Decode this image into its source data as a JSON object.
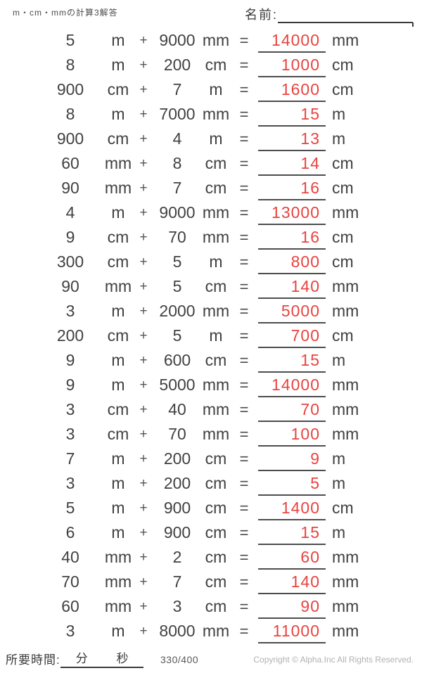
{
  "header": {
    "title": "m・cm・mmの計算3解答",
    "name_label": "名前:"
  },
  "colors": {
    "text": "#414141",
    "answer_red": "#e8433f",
    "rule_gray": "#4d4d4d",
    "muted_gray": "#b3b1b1"
  },
  "problems": [
    {
      "v1": "5",
      "u1": "m",
      "op": "+",
      "v2": "9000",
      "u2": "mm",
      "eq": "=",
      "ans": "14000",
      "u3": "mm"
    },
    {
      "v1": "8",
      "u1": "m",
      "op": "+",
      "v2": "200",
      "u2": "cm",
      "eq": "=",
      "ans": "1000",
      "u3": "cm"
    },
    {
      "v1": "900",
      "u1": "cm",
      "op": "+",
      "v2": "7",
      "u2": "m",
      "eq": "=",
      "ans": "1600",
      "u3": "cm"
    },
    {
      "v1": "8",
      "u1": "m",
      "op": "+",
      "v2": "7000",
      "u2": "mm",
      "eq": "=",
      "ans": "15",
      "u3": "m"
    },
    {
      "v1": "900",
      "u1": "cm",
      "op": "+",
      "v2": "4",
      "u2": "m",
      "eq": "=",
      "ans": "13",
      "u3": "m"
    },
    {
      "v1": "60",
      "u1": "mm",
      "op": "+",
      "v2": "8",
      "u2": "cm",
      "eq": "=",
      "ans": "14",
      "u3": "cm"
    },
    {
      "v1": "90",
      "u1": "mm",
      "op": "+",
      "v2": "7",
      "u2": "cm",
      "eq": "=",
      "ans": "16",
      "u3": "cm"
    },
    {
      "v1": "4",
      "u1": "m",
      "op": "+",
      "v2": "9000",
      "u2": "mm",
      "eq": "=",
      "ans": "13000",
      "u3": "mm"
    },
    {
      "v1": "9",
      "u1": "cm",
      "op": "+",
      "v2": "70",
      "u2": "mm",
      "eq": "=",
      "ans": "16",
      "u3": "cm"
    },
    {
      "v1": "300",
      "u1": "cm",
      "op": "+",
      "v2": "5",
      "u2": "m",
      "eq": "=",
      "ans": "800",
      "u3": "cm"
    },
    {
      "v1": "90",
      "u1": "mm",
      "op": "+",
      "v2": "5",
      "u2": "cm",
      "eq": "=",
      "ans": "140",
      "u3": "mm"
    },
    {
      "v1": "3",
      "u1": "m",
      "op": "+",
      "v2": "2000",
      "u2": "mm",
      "eq": "=",
      "ans": "5000",
      "u3": "mm"
    },
    {
      "v1": "200",
      "u1": "cm",
      "op": "+",
      "v2": "5",
      "u2": "m",
      "eq": "=",
      "ans": "700",
      "u3": "cm"
    },
    {
      "v1": "9",
      "u1": "m",
      "op": "+",
      "v2": "600",
      "u2": "cm",
      "eq": "=",
      "ans": "15",
      "u3": "m"
    },
    {
      "v1": "9",
      "u1": "m",
      "op": "+",
      "v2": "5000",
      "u2": "mm",
      "eq": "=",
      "ans": "14000",
      "u3": "mm"
    },
    {
      "v1": "3",
      "u1": "cm",
      "op": "+",
      "v2": "40",
      "u2": "mm",
      "eq": "=",
      "ans": "70",
      "u3": "mm"
    },
    {
      "v1": "3",
      "u1": "cm",
      "op": "+",
      "v2": "70",
      "u2": "mm",
      "eq": "=",
      "ans": "100",
      "u3": "mm"
    },
    {
      "v1": "7",
      "u1": "m",
      "op": "+",
      "v2": "200",
      "u2": "cm",
      "eq": "=",
      "ans": "9",
      "u3": "m"
    },
    {
      "v1": "3",
      "u1": "m",
      "op": "+",
      "v2": "200",
      "u2": "cm",
      "eq": "=",
      "ans": "5",
      "u3": "m"
    },
    {
      "v1": "5",
      "u1": "m",
      "op": "+",
      "v2": "900",
      "u2": "cm",
      "eq": "=",
      "ans": "1400",
      "u3": "cm"
    },
    {
      "v1": "6",
      "u1": "m",
      "op": "+",
      "v2": "900",
      "u2": "cm",
      "eq": "=",
      "ans": "15",
      "u3": "m"
    },
    {
      "v1": "40",
      "u1": "mm",
      "op": "+",
      "v2": "2",
      "u2": "cm",
      "eq": "=",
      "ans": "60",
      "u3": "mm"
    },
    {
      "v1": "70",
      "u1": "mm",
      "op": "+",
      "v2": "7",
      "u2": "cm",
      "eq": "=",
      "ans": "140",
      "u3": "mm"
    },
    {
      "v1": "60",
      "u1": "mm",
      "op": "+",
      "v2": "3",
      "u2": "cm",
      "eq": "=",
      "ans": "90",
      "u3": "mm"
    },
    {
      "v1": "3",
      "u1": "m",
      "op": "+",
      "v2": "8000",
      "u2": "mm",
      "eq": "=",
      "ans": "11000",
      "u3": "mm"
    }
  ],
  "footer": {
    "time_label": "所要時間:",
    "minutes_label": "分",
    "seconds_label": "秒",
    "page_number": "330/400",
    "copyright": "Copyright © Alpha.Inc All Rights Reserved."
  }
}
